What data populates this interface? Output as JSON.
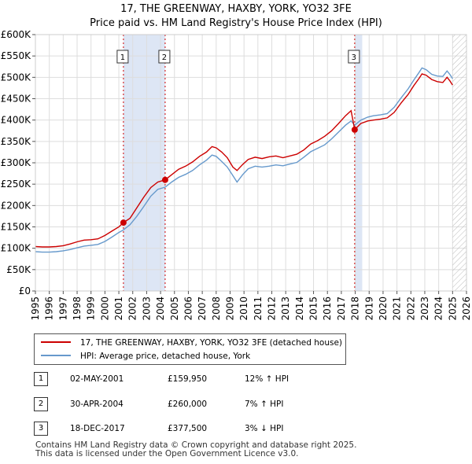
{
  "chart_data": {
    "type": "line",
    "title": "17, THE GREENWAY, HAXBY, YORK, YO32 3FE",
    "subtitle": "Price paid vs. HM Land Registry's House Price Index (HPI)",
    "xlim": [
      1995,
      2026
    ],
    "ylim": [
      0,
      600000
    ],
    "x_ticks": [
      "1995",
      "1996",
      "1997",
      "1998",
      "1999",
      "2000",
      "2001",
      "2002",
      "2003",
      "2004",
      "2005",
      "2006",
      "2007",
      "2008",
      "2009",
      "2010",
      "2011",
      "2012",
      "2013",
      "2014",
      "2015",
      "2016",
      "2017",
      "2018",
      "2019",
      "2020",
      "2021",
      "2022",
      "2023",
      "2024",
      "2025",
      "2026"
    ],
    "y_ticks": [
      {
        "value": 0,
        "label": "£0"
      },
      {
        "value": 50000,
        "label": "£50K"
      },
      {
        "value": 100000,
        "label": "£100K"
      },
      {
        "value": 150000,
        "label": "£150K"
      },
      {
        "value": 200000,
        "label": "£200K"
      },
      {
        "value": 250000,
        "label": "£250K"
      },
      {
        "value": 300000,
        "label": "£300K"
      },
      {
        "value": 350000,
        "label": "£350K"
      },
      {
        "value": 400000,
        "label": "£400K"
      },
      {
        "value": 450000,
        "label": "£450K"
      },
      {
        "value": 500000,
        "label": "£500K"
      },
      {
        "value": 550000,
        "label": "£550K"
      },
      {
        "value": 600000,
        "label": "£600K"
      }
    ],
    "series": [
      {
        "name": "17, THE GREENWAY, HAXBY, YORK, YO32 3FE (detached house)",
        "color": "#cc0000",
        "points": [
          [
            1995.0,
            104000
          ],
          [
            1995.5,
            103000
          ],
          [
            1996.0,
            103000
          ],
          [
            1996.5,
            104000
          ],
          [
            1997.0,
            106000
          ],
          [
            1997.5,
            110000
          ],
          [
            1998.0,
            115000
          ],
          [
            1998.5,
            119000
          ],
          [
            1999.0,
            120000
          ],
          [
            1999.5,
            122000
          ],
          [
            2000.0,
            130000
          ],
          [
            2000.5,
            140000
          ],
          [
            2001.0,
            150000
          ],
          [
            2001.33,
            159950
          ],
          [
            2001.8,
            170000
          ],
          [
            2002.3,
            195000
          ],
          [
            2002.8,
            220000
          ],
          [
            2003.3,
            242000
          ],
          [
            2003.8,
            255000
          ],
          [
            2004.33,
            260000
          ],
          [
            2004.8,
            272000
          ],
          [
            2005.3,
            285000
          ],
          [
            2005.8,
            292000
          ],
          [
            2006.3,
            302000
          ],
          [
            2006.8,
            315000
          ],
          [
            2007.3,
            325000
          ],
          [
            2007.7,
            338000
          ],
          [
            2008.0,
            335000
          ],
          [
            2008.4,
            325000
          ],
          [
            2008.8,
            312000
          ],
          [
            2009.2,
            290000
          ],
          [
            2009.5,
            282000
          ],
          [
            2009.9,
            296000
          ],
          [
            2010.3,
            308000
          ],
          [
            2010.8,
            313000
          ],
          [
            2011.3,
            310000
          ],
          [
            2011.8,
            314000
          ],
          [
            2012.3,
            316000
          ],
          [
            2012.8,
            312000
          ],
          [
            2013.3,
            316000
          ],
          [
            2013.8,
            320000
          ],
          [
            2014.3,
            330000
          ],
          [
            2014.8,
            344000
          ],
          [
            2015.3,
            352000
          ],
          [
            2015.8,
            362000
          ],
          [
            2016.3,
            375000
          ],
          [
            2016.8,
            392000
          ],
          [
            2017.3,
            410000
          ],
          [
            2017.7,
            422000
          ],
          [
            2017.96,
            377500
          ],
          [
            2018.4,
            392000
          ],
          [
            2018.9,
            398000
          ],
          [
            2019.3,
            400000
          ],
          [
            2019.8,
            402000
          ],
          [
            2020.3,
            405000
          ],
          [
            2020.8,
            418000
          ],
          [
            2021.3,
            440000
          ],
          [
            2021.8,
            460000
          ],
          [
            2022.2,
            480000
          ],
          [
            2022.6,
            498000
          ],
          [
            2022.8,
            508000
          ],
          [
            2023.1,
            505000
          ],
          [
            2023.5,
            495000
          ],
          [
            2023.9,
            490000
          ],
          [
            2024.3,
            488000
          ],
          [
            2024.6,
            500000
          ],
          [
            2024.8,
            492000
          ],
          [
            2025.0,
            482000
          ]
        ]
      },
      {
        "name": "HPI: Average price, detached house, York",
        "color": "#6699cc",
        "points": [
          [
            1995.0,
            92000
          ],
          [
            1995.5,
            91000
          ],
          [
            1996.0,
            91000
          ],
          [
            1996.5,
            92000
          ],
          [
            1997.0,
            94000
          ],
          [
            1997.5,
            97000
          ],
          [
            1998.0,
            101000
          ],
          [
            1998.5,
            105000
          ],
          [
            1999.0,
            107000
          ],
          [
            1999.5,
            109000
          ],
          [
            2000.0,
            116000
          ],
          [
            2000.5,
            126000
          ],
          [
            2001.0,
            137000
          ],
          [
            2001.33,
            143000
          ],
          [
            2001.8,
            155000
          ],
          [
            2002.3,
            175000
          ],
          [
            2002.8,
            198000
          ],
          [
            2003.3,
            222000
          ],
          [
            2003.8,
            238000
          ],
          [
            2004.33,
            243000
          ],
          [
            2004.8,
            255000
          ],
          [
            2005.3,
            266000
          ],
          [
            2005.8,
            273000
          ],
          [
            2006.3,
            282000
          ],
          [
            2006.8,
            295000
          ],
          [
            2007.3,
            306000
          ],
          [
            2007.7,
            318000
          ],
          [
            2008.0,
            315000
          ],
          [
            2008.4,
            303000
          ],
          [
            2008.8,
            290000
          ],
          [
            2009.2,
            270000
          ],
          [
            2009.5,
            255000
          ],
          [
            2009.9,
            272000
          ],
          [
            2010.3,
            286000
          ],
          [
            2010.8,
            292000
          ],
          [
            2011.3,
            290000
          ],
          [
            2011.8,
            292000
          ],
          [
            2012.3,
            295000
          ],
          [
            2012.8,
            293000
          ],
          [
            2013.3,
            297000
          ],
          [
            2013.8,
            301000
          ],
          [
            2014.3,
            313000
          ],
          [
            2014.8,
            326000
          ],
          [
            2015.3,
            334000
          ],
          [
            2015.8,
            342000
          ],
          [
            2016.3,
            356000
          ],
          [
            2016.8,
            372000
          ],
          [
            2017.3,
            388000
          ],
          [
            2017.7,
            398000
          ],
          [
            2017.96,
            388000
          ],
          [
            2018.4,
            400000
          ],
          [
            2018.9,
            407000
          ],
          [
            2019.3,
            410000
          ],
          [
            2019.8,
            412000
          ],
          [
            2020.3,
            415000
          ],
          [
            2020.8,
            430000
          ],
          [
            2021.3,
            452000
          ],
          [
            2021.8,
            473000
          ],
          [
            2022.2,
            493000
          ],
          [
            2022.6,
            512000
          ],
          [
            2022.8,
            522000
          ],
          [
            2023.1,
            518000
          ],
          [
            2023.5,
            507000
          ],
          [
            2023.9,
            503000
          ],
          [
            2024.3,
            502000
          ],
          [
            2024.6,
            515000
          ],
          [
            2024.8,
            507000
          ],
          [
            2025.0,
            497000
          ]
        ]
      }
    ],
    "transactions": [
      {
        "label": "1",
        "x": 2001.33,
        "value": 159950
      },
      {
        "label": "2",
        "x": 2004.33,
        "value": 260000
      },
      {
        "label": "3",
        "x": 2017.96,
        "value": 377500
      }
    ],
    "shaded_periods": [
      [
        2001.33,
        2004.33
      ],
      [
        2017.96,
        2018.5
      ]
    ],
    "future_hatch_from": 2025.0
  },
  "legend": {
    "property_label": "17, THE GREENWAY, HAXBY, YORK, YO32 3FE (detached house)",
    "hpi_label": "HPI: Average price, detached house, York"
  },
  "transactions": [
    {
      "num": "1",
      "date": "02-MAY-2001",
      "price": "£159,950",
      "hpi": "12% ↑ HPI"
    },
    {
      "num": "2",
      "date": "30-APR-2004",
      "price": "£260,000",
      "hpi": "7% ↑ HPI"
    },
    {
      "num": "3",
      "date": "18-DEC-2017",
      "price": "£377,500",
      "hpi": "3% ↓ HPI"
    }
  ],
  "footer": {
    "line1": "Contains HM Land Registry data © Crown copyright and database right 2025.",
    "line2": "This data is licensed under the Open Government Licence v3.0."
  },
  "colors": {
    "red": "#cc0000",
    "blue": "#6699cc",
    "shade": "#dde6f5",
    "grid": "#dddddd"
  }
}
